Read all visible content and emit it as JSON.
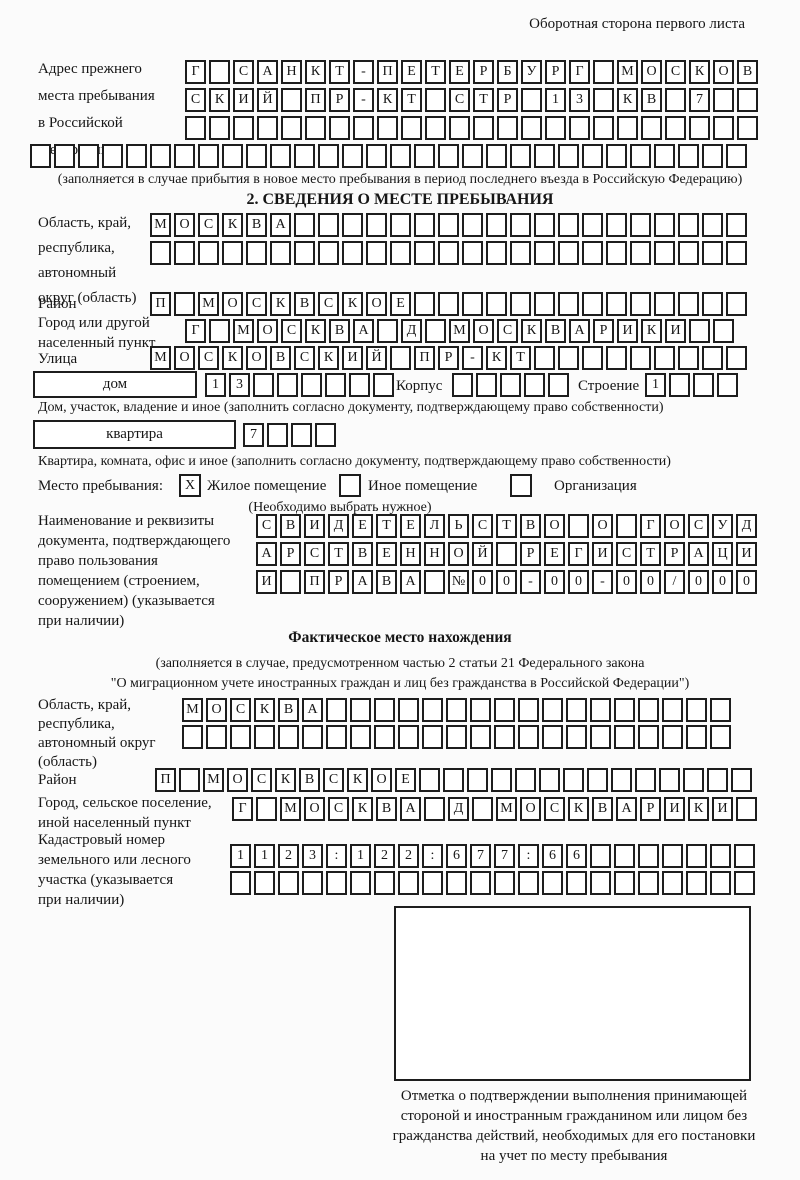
{
  "page": {
    "title": "Оборотная сторона первого листа"
  },
  "previous_address": {
    "label": "Адрес прежнего\nместа пребывания\nв Российской\nФедерации",
    "rows": [
      {
        "text": "Г_САНКТ-ПЕТЕРБУРГ_МОСКОВ",
        "len": 24
      },
      {
        "text": "СКИЙ_ПР-КТ_СТР_13_КВ_7",
        "len": 24
      },
      {
        "text": "",
        "len": 24
      },
      {
        "text": "",
        "len": 30
      }
    ],
    "note": "(заполняется в случае прибытия в новое место пребывания в период последнего въезда в Российскую Федерацию)"
  },
  "section2": {
    "heading": "2. СВЕДЕНИЯ О МЕСТЕ ПРЕБЫВАНИЯ",
    "region": {
      "label": "Область, край,\nреспублика,\nавтономный\nокруг (область)",
      "rows": [
        {
          "text": "МОСКВА",
          "len": 25
        },
        {
          "text": "",
          "len": 25
        }
      ]
    },
    "district": {
      "label": "Район",
      "row": {
        "text": "П_МОСКВСКОЕ",
        "len": 25
      }
    },
    "city": {
      "label": "Город или другой\nнаселенный пункт",
      "row": {
        "text": "Г_МОСКВА_Д_МОСКВАРИКИ",
        "len": 23
      }
    },
    "street": {
      "label": "Улица",
      "row": {
        "text": "МОСКОВСКИЙ_ПР-КТ",
        "len": 25
      }
    },
    "house": {
      "box_label": "дом",
      "cells": {
        "text": "13",
        "len": 8
      },
      "korpus_label": "Корпус",
      "korpus_cells": {
        "text": "",
        "len": 5
      },
      "stroenie_label": "Строение",
      "stroenie_cells": {
        "text": "1",
        "len": 4
      }
    },
    "house_note": "Дом, участок, владение и иное (заполнить согласно документу, подтверждающему право собственности)",
    "apartment": {
      "box_label": "квартира",
      "cells": {
        "text": "7",
        "len": 4
      }
    },
    "apartment_note": "Квартира, комната, офис и иное (заполнить согласно документу, подтверждающему право собственности)",
    "stay": {
      "label": "Место пребывания:",
      "options": [
        {
          "label": "Жилое помещение",
          "mark": "X"
        },
        {
          "label": "Иное помещение",
          "mark": ""
        },
        {
          "label": "Организация",
          "mark": ""
        }
      ],
      "note": "(Необходимо выбрать нужное)"
    },
    "document": {
      "label": "Наименование и реквизиты\nдокумента, подтверждающего\nправо пользования\nпомещением (строением,\nсооружением) (указывается\nпри наличии)",
      "rows": [
        {
          "text": "СВИДЕТЕЛЬСТВО_О_ГОСУД",
          "len": 21
        },
        {
          "text": "АРСТВЕННОЙ_РЕГИСТРАЦИ",
          "len": 21
        },
        {
          "text": "И_ПРАВА_№00-00-00/000",
          "len": 21
        }
      ]
    }
  },
  "actual_location": {
    "heading": "Фактическое место нахождения",
    "note": "(заполняется в случае, предусмотренном частью 2 статьи 21 Федерального закона\n\"О миграционном учете иностранных граждан и лиц без гражданства в Российской Федерации\")",
    "region": {
      "label": "Область, край,\nреспублика,\nавтономный округ\n(область)",
      "rows": [
        {
          "text": "МОСКВА",
          "len": 23
        },
        {
          "text": "",
          "len": 23
        }
      ]
    },
    "district": {
      "label": "Район",
      "row": {
        "text": "П_МОСКВСКОЕ",
        "len": 25
      }
    },
    "city": {
      "label": "Город, сельское поселение,\nиной населенный пункт",
      "row": {
        "text": "Г_МОСКВА_Д_МОСКВАРИКИ",
        "len": 22
      }
    },
    "cadastral": {
      "label": "Кадастровый номер\nземельного или лесного\nучастка (указывается\nпри наличии)",
      "rows": [
        {
          "text": "1123:122:677:66",
          "len": 22
        },
        {
          "text": "",
          "len": 22
        }
      ]
    },
    "mark_caption": "Отметка о подтверждении выполнения принимающей\nстороной и иностранным гражданином или лицом без\nгражданства действий, необходимых для его постановки\nна учет по месту пребывания"
  }
}
